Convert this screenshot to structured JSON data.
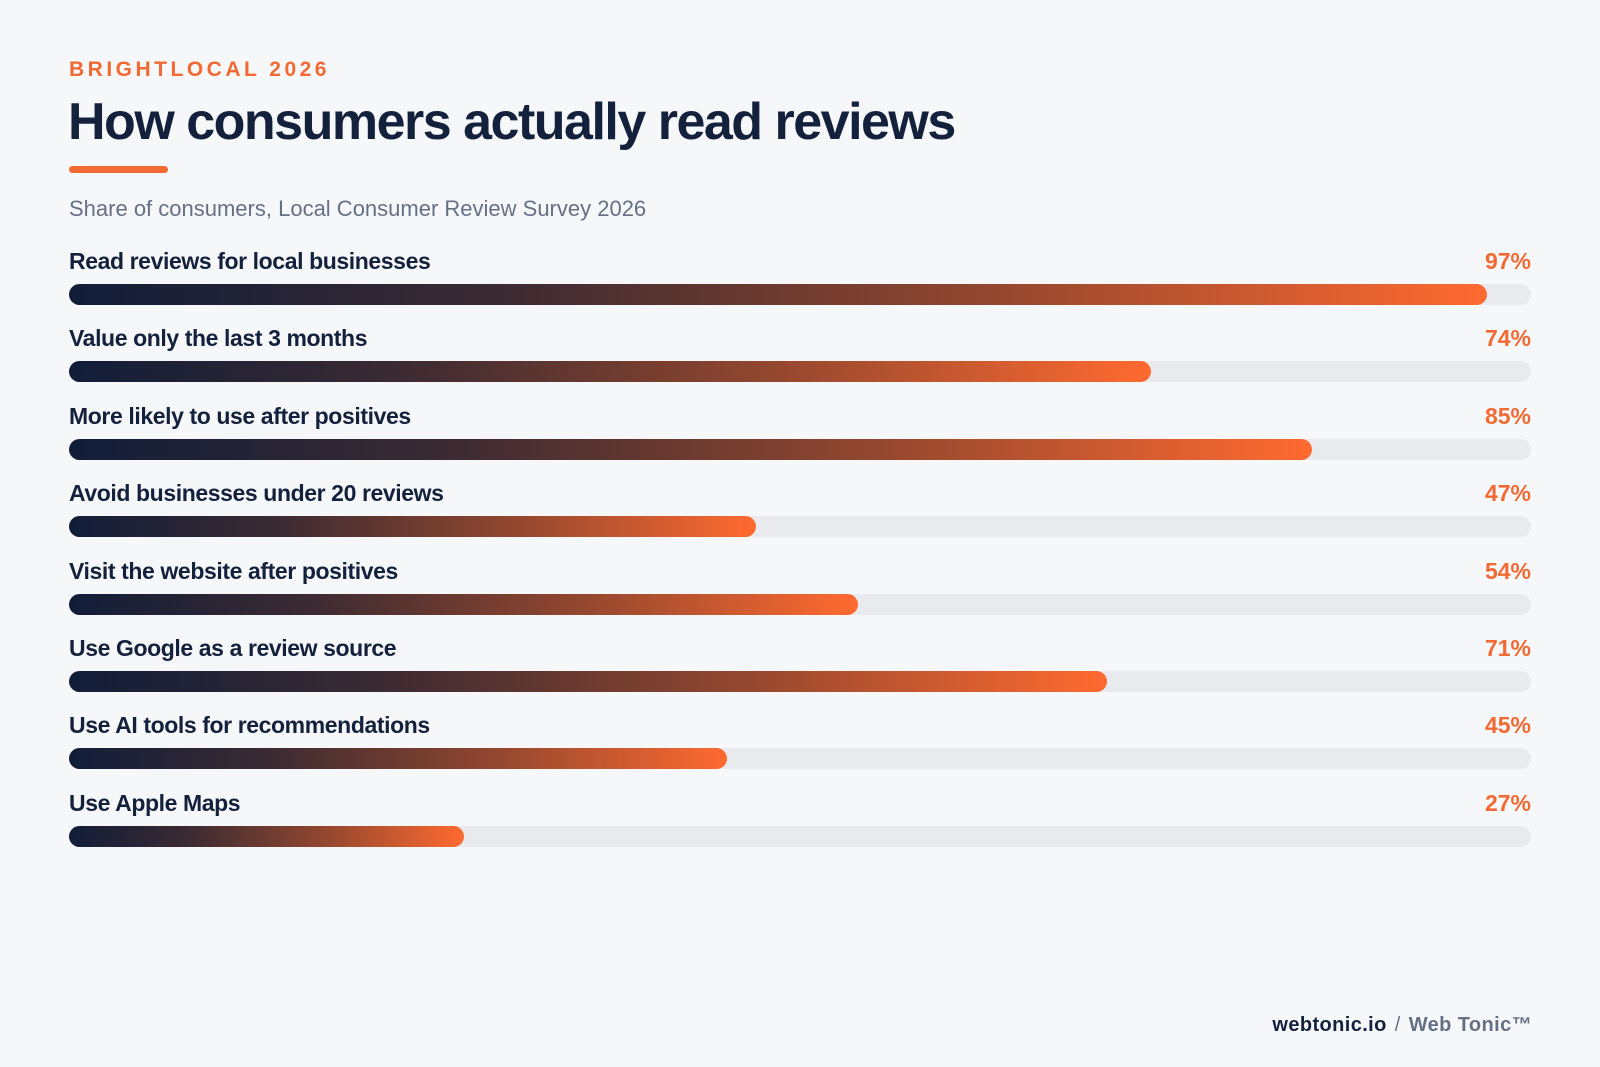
{
  "header": {
    "eyebrow": "BRIGHTLOCAL 2026",
    "title": "How consumers actually read reviews",
    "subtitle": "Share of consumers, Local Consumer Review Survey 2026"
  },
  "colors": {
    "accent": "#f26a33",
    "navy": "#14213d",
    "muted": "#667085",
    "track": "#e8eaee",
    "background": "#f6f7f9"
  },
  "chart_data": {
    "type": "bar",
    "orientation": "horizontal",
    "categories": [
      "Read reviews for local businesses",
      "Value only the last 3 months",
      "More likely to use after positives",
      "Avoid businesses under 20 reviews",
      "Visit the website after positives",
      "Use Google as a review source",
      "Use AI tools for recommendations",
      "Use Apple Maps"
    ],
    "values": [
      97,
      74,
      85,
      47,
      54,
      71,
      45,
      27
    ],
    "value_labels": [
      "97%",
      "74%",
      "85%",
      "47%",
      "54%",
      "71%",
      "45%",
      "27%"
    ],
    "xlim": [
      0,
      100
    ],
    "title": "How consumers actually read reviews",
    "subtitle": "Share of consumers, Local Consumer Review Survey 2026",
    "grid": false,
    "legend": "none"
  },
  "footer": {
    "site": "webtonic.io",
    "separator": "/",
    "brand": "Web Tonic™"
  }
}
